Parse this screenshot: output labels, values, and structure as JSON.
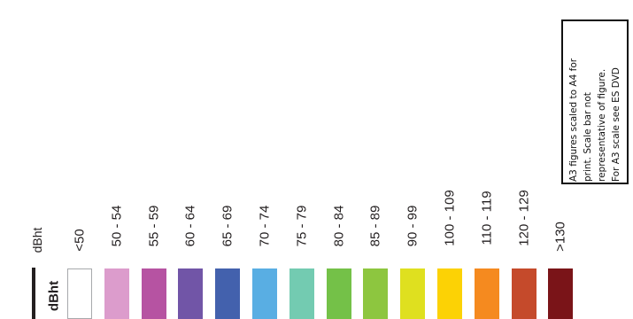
{
  "legend": {
    "title": "dBht",
    "header": "dBht",
    "classes": [
      {
        "label": "<50",
        "color": "#ffffff"
      },
      {
        "label": "50 - 54",
        "color": "#dc9ccc"
      },
      {
        "label": "55 - 59",
        "color": "#b653a2"
      },
      {
        "label": "60 - 64",
        "color": "#7155a7"
      },
      {
        "label": "65 - 69",
        "color": "#4361ad"
      },
      {
        "label": "70 - 74",
        "color": "#59aee3"
      },
      {
        "label": "75 - 79",
        "color": "#73cbb1"
      },
      {
        "label": "80 - 84",
        "color": "#74c148"
      },
      {
        "label": "85 - 89",
        "color": "#8dc63f"
      },
      {
        "label": "90 - 99",
        "color": "#dfe01f"
      },
      {
        "label": "100 - 109",
        "color": "#fcd205"
      },
      {
        "label": "110 - 119",
        "color": "#f58a1f"
      },
      {
        "label": "120 - 129",
        "color": "#c54a2b"
      },
      {
        "label": ">130",
        "color": "#7a1418"
      }
    ]
  },
  "note": {
    "lines": [
      "A3 figures scaled to A4 for",
      "print. Scale bar not",
      "representative of figure.",
      "For A3 scale see ES DVD"
    ]
  }
}
